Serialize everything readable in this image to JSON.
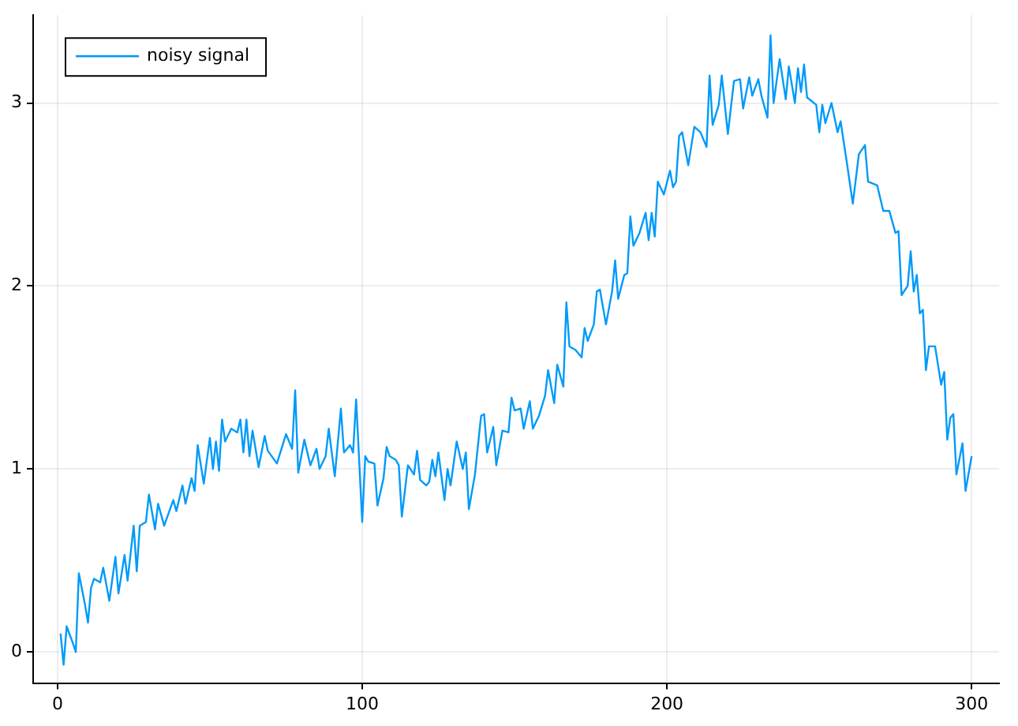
{
  "chart_data": {
    "type": "line",
    "xlim": [
      -8,
      309
    ],
    "ylim": [
      -0.17,
      3.48
    ],
    "xticks": [
      0,
      100,
      200,
      300
    ],
    "yticks": [
      0,
      1,
      2,
      3
    ],
    "grid": true,
    "legend": "top left",
    "marker": "none",
    "line_style": "solid",
    "series": [
      {
        "name": "noisy signal",
        "color": "#009af9",
        "x": [
          1,
          2,
          3,
          5,
          6,
          7,
          9,
          10,
          11,
          12,
          14,
          15,
          17,
          19,
          20,
          22,
          23,
          25,
          26,
          27,
          29,
          30,
          32,
          33,
          35,
          38,
          39,
          41,
          42,
          44,
          45,
          46,
          48,
          50,
          51,
          52,
          53,
          54,
          55,
          57,
          59,
          60,
          61,
          62,
          63,
          64,
          66,
          68,
          69,
          72,
          75,
          77,
          78,
          79,
          81,
          83,
          85,
          86,
          88,
          89,
          91,
          93,
          94,
          96,
          97,
          98,
          100,
          101,
          102,
          104,
          105,
          107,
          108,
          109,
          111,
          112,
          113,
          115,
          117,
          118,
          119,
          121,
          122,
          123,
          124,
          125,
          127,
          128,
          129,
          131,
          133,
          134,
          135,
          137,
          139,
          140,
          141,
          143,
          144,
          146,
          148,
          149,
          150,
          152,
          153,
          155,
          156,
          158,
          160,
          161,
          163,
          164,
          166,
          167,
          168,
          170,
          172,
          173,
          174,
          176,
          177,
          178,
          180,
          182,
          183,
          184,
          186,
          187,
          188,
          189,
          191,
          193,
          194,
          195,
          196,
          197,
          199,
          201,
          202,
          203,
          204,
          205,
          207,
          209,
          211,
          213,
          214,
          215,
          217,
          218,
          220,
          222,
          224,
          225,
          227,
          228,
          230,
          231,
          233,
          234,
          235,
          237,
          239,
          240,
          242,
          243,
          244,
          245,
          246,
          249,
          250,
          251,
          252,
          254,
          256,
          257,
          259,
          261,
          263,
          265,
          266,
          269,
          271,
          273,
          275,
          276,
          277,
          279,
          280,
          281,
          282,
          283,
          284,
          285,
          286,
          288,
          290,
          291,
          292,
          293,
          294,
          295,
          297,
          298,
          300
        ],
        "values": [
          0.1,
          -0.07,
          0.14,
          0.05,
          0.0,
          0.43,
          0.26,
          0.16,
          0.35,
          0.4,
          0.38,
          0.46,
          0.28,
          0.52,
          0.32,
          0.53,
          0.39,
          0.69,
          0.44,
          0.69,
          0.71,
          0.86,
          0.67,
          0.81,
          0.69,
          0.83,
          0.77,
          0.91,
          0.81,
          0.95,
          0.88,
          1.13,
          0.92,
          1.17,
          1.0,
          1.15,
          0.99,
          1.27,
          1.15,
          1.22,
          1.2,
          1.27,
          1.09,
          1.27,
          1.07,
          1.21,
          1.01,
          1.18,
          1.1,
          1.03,
          1.19,
          1.11,
          1.43,
          0.98,
          1.16,
          1.02,
          1.11,
          1.0,
          1.07,
          1.22,
          0.96,
          1.33,
          1.09,
          1.13,
          1.09,
          1.38,
          0.71,
          1.07,
          1.04,
          1.03,
          0.8,
          0.95,
          1.12,
          1.07,
          1.05,
          1.02,
          0.74,
          1.02,
          0.97,
          1.1,
          0.94,
          0.91,
          0.93,
          1.05,
          0.96,
          1.09,
          0.83,
          1.0,
          0.91,
          1.15,
          1.0,
          1.09,
          0.78,
          0.97,
          1.29,
          1.3,
          1.09,
          1.23,
          1.02,
          1.21,
          1.2,
          1.39,
          1.32,
          1.33,
          1.22,
          1.37,
          1.22,
          1.29,
          1.4,
          1.54,
          1.36,
          1.57,
          1.45,
          1.91,
          1.67,
          1.65,
          1.61,
          1.77,
          1.7,
          1.79,
          1.97,
          1.98,
          1.79,
          1.97,
          2.14,
          1.93,
          2.06,
          2.07,
          2.38,
          2.22,
          2.29,
          2.4,
          2.25,
          2.4,
          2.27,
          2.57,
          2.5,
          2.63,
          2.54,
          2.57,
          2.82,
          2.84,
          2.66,
          2.87,
          2.84,
          2.76,
          3.15,
          2.88,
          2.99,
          3.15,
          2.83,
          3.12,
          3.13,
          2.97,
          3.14,
          3.04,
          3.13,
          3.04,
          2.92,
          3.37,
          3.0,
          3.24,
          3.02,
          3.2,
          3.0,
          3.19,
          3.06,
          3.21,
          3.03,
          2.99,
          2.84,
          2.99,
          2.89,
          3.0,
          2.84,
          2.9,
          2.68,
          2.45,
          2.72,
          2.77,
          2.57,
          2.55,
          2.41,
          2.41,
          2.29,
          2.3,
          1.95,
          2.0,
          2.19,
          1.97,
          2.06,
          1.85,
          1.87,
          1.54,
          1.67,
          1.67,
          1.46,
          1.53,
          1.16,
          1.28,
          1.3,
          0.97,
          1.14,
          0.88,
          1.07
        ]
      }
    ]
  }
}
